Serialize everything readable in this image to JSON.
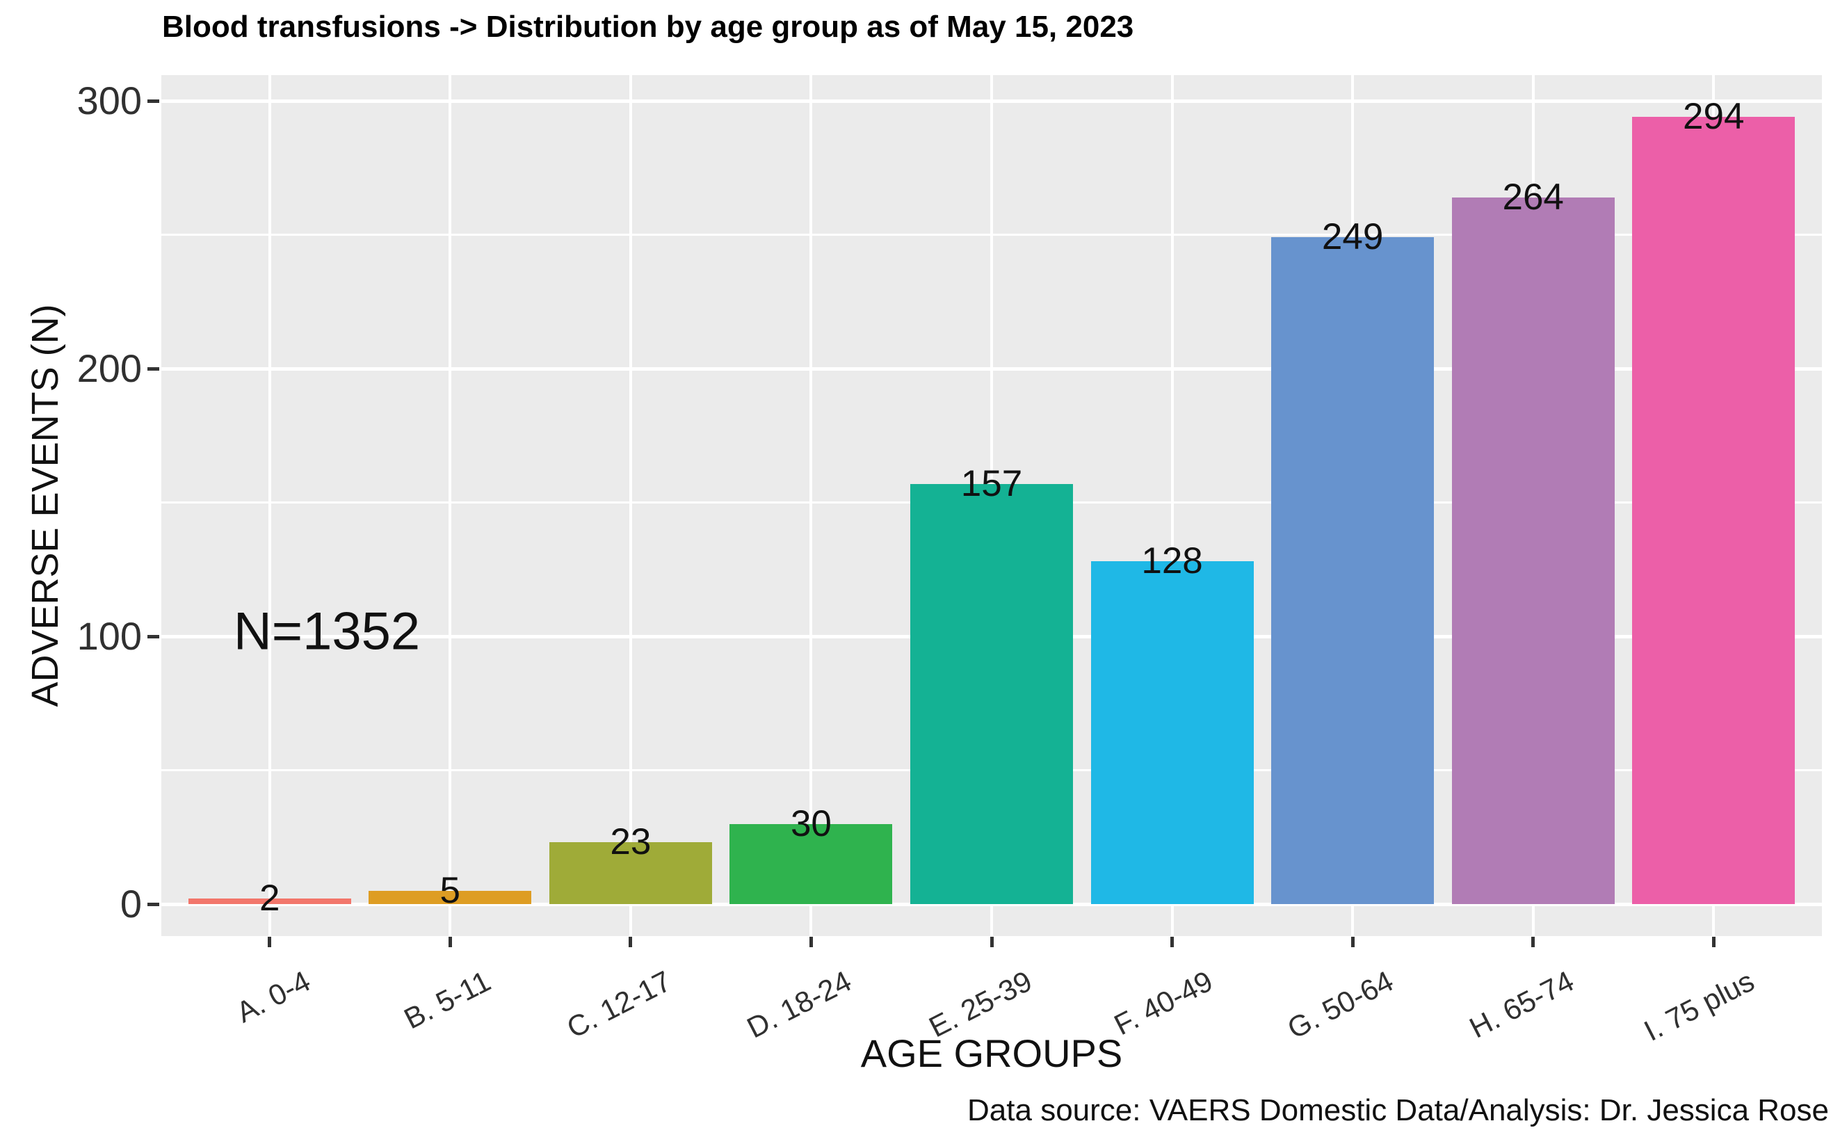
{
  "chart_data": {
    "type": "bar",
    "title": "Blood transfusions -> Distribution by age group as of May 15, 2023",
    "xlabel": "AGE GROUPS",
    "ylabel": "ADVERSE EVENTS (N)",
    "annotation": "N=1352",
    "caption": "Data source: VAERS Domestic Data/Analysis: Dr. Jessica Rose",
    "categories": [
      "A. 0-4",
      "B. 5-11",
      "C. 12-17",
      "D. 18-24",
      "E. 25-39",
      "F. 40-49",
      "G. 50-64",
      "H. 65-74",
      "I. 75 plus"
    ],
    "values": [
      2,
      5,
      23,
      30,
      157,
      128,
      249,
      264,
      294
    ],
    "bar_colors": [
      "#F2766B",
      "#DE9D23",
      "#9FAB38",
      "#2FB34E",
      "#14B294",
      "#1FB8E6",
      "#6793CE",
      "#B17CB5",
      "#EC5FA8"
    ],
    "total": 1352,
    "ylim": [
      0,
      309
    ],
    "yticks": [
      0,
      100,
      200,
      300
    ],
    "yticks_minor": [
      50,
      150,
      250
    ],
    "grid": true,
    "legend": false,
    "panel_background": "#EBEBEB",
    "grid_color": "#FFFFFF",
    "label_color": "#111111",
    "axis_text_color": "#303030"
  }
}
